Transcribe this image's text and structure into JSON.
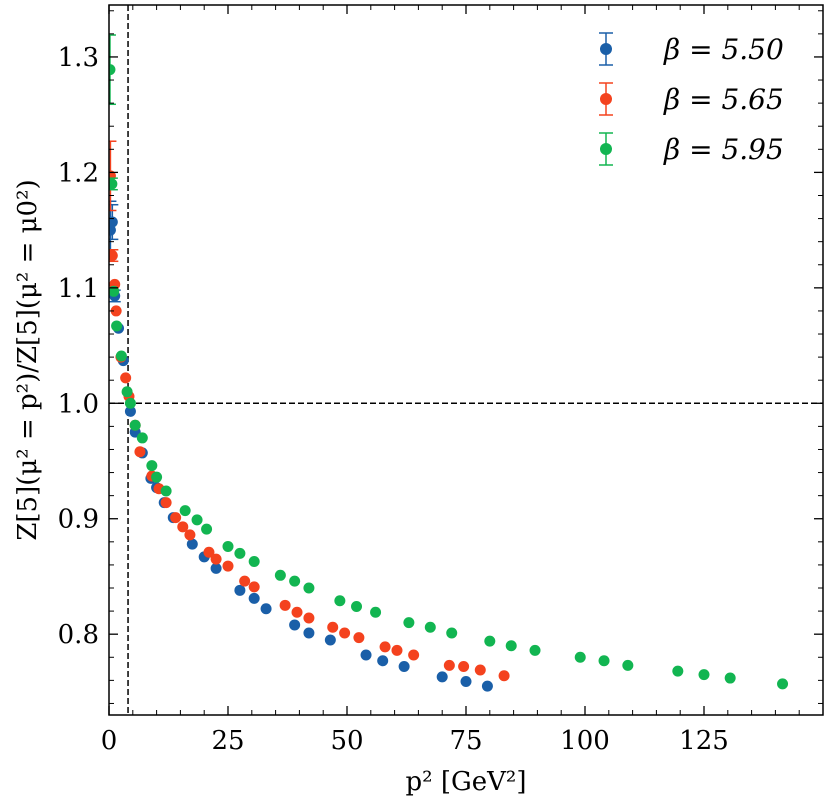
{
  "chart_data": {
    "type": "scatter",
    "title": "",
    "xlabel": "p² [GeV²]",
    "ylabel": "Z[5](μ² = p²)/Z[5](μ² = μ0²)",
    "xlim": [
      0,
      150
    ],
    "ylim": [
      0.73,
      1.345
    ],
    "xticks": [
      0,
      25,
      50,
      75,
      100,
      125
    ],
    "xtick_labels": [
      "0",
      "25",
      "50",
      "75",
      "100",
      "125"
    ],
    "yticks": [
      0.8,
      0.9,
      1.0,
      1.1,
      1.2,
      1.3
    ],
    "ytick_labels": [
      "0.8",
      "0.9",
      "1.0",
      "1.1",
      "1.2",
      "1.3"
    ],
    "reference_lines": {
      "hline_y": 1.0,
      "vline_x": 4
    },
    "legend_position": "top-right",
    "series": [
      {
        "name": "β = 5.50",
        "color": "#1a5fa8",
        "points": [
          [
            0.3,
            1.15,
            0.025
          ],
          [
            0.7,
            1.157,
            0.015
          ],
          [
            1.2,
            1.093,
            0.005
          ],
          [
            2.0,
            1.065,
            0.004
          ],
          [
            3.0,
            1.037,
            0.003
          ],
          [
            4.5,
            0.993,
            0.002
          ],
          [
            5.5,
            0.975,
            0.002
          ],
          [
            7.0,
            0.957,
            0.002
          ],
          [
            8.8,
            0.935,
            0.002
          ],
          [
            10.0,
            0.927,
            0.002
          ],
          [
            11.6,
            0.914,
            0.002
          ],
          [
            13.5,
            0.901,
            0.002
          ],
          [
            17.5,
            0.878,
            0.002
          ],
          [
            20.0,
            0.867,
            0.002
          ],
          [
            22.5,
            0.857,
            0.002
          ],
          [
            27.5,
            0.838,
            0.002
          ],
          [
            30.5,
            0.831,
            0.002
          ],
          [
            33.0,
            0.822,
            0.002
          ],
          [
            39.0,
            0.808,
            0.002
          ],
          [
            42.0,
            0.801,
            0.002
          ],
          [
            46.5,
            0.795,
            0.002
          ],
          [
            54.0,
            0.782,
            0.002
          ],
          [
            57.5,
            0.777,
            0.002
          ],
          [
            62.0,
            0.772,
            0.002
          ],
          [
            70.0,
            0.763,
            0.002
          ],
          [
            75.0,
            0.759,
            0.002
          ],
          [
            79.5,
            0.755,
            0.002
          ]
        ]
      },
      {
        "name": "β = 5.65",
        "color": "#f4421e",
        "points": [
          [
            0.3,
            1.197,
            0.03
          ],
          [
            0.7,
            1.128,
            0.005
          ],
          [
            1.2,
            1.103,
            0.004
          ],
          [
            1.5,
            1.08,
            0.004
          ],
          [
            2.5,
            1.04,
            0.003
          ],
          [
            3.5,
            1.022,
            0.003
          ],
          [
            4.2,
            1.006,
            0.002
          ],
          [
            5.5,
            0.981,
            0.002
          ],
          [
            6.5,
            0.958,
            0.002
          ],
          [
            9.0,
            0.937,
            0.002
          ],
          [
            10.5,
            0.926,
            0.002
          ],
          [
            12.0,
            0.914,
            0.002
          ],
          [
            14.0,
            0.901,
            0.002
          ],
          [
            15.5,
            0.893,
            0.002
          ],
          [
            17.0,
            0.886,
            0.002
          ],
          [
            21.0,
            0.871,
            0.002
          ],
          [
            22.5,
            0.865,
            0.002
          ],
          [
            25.0,
            0.859,
            0.002
          ],
          [
            28.5,
            0.846,
            0.002
          ],
          [
            30.5,
            0.841,
            0.002
          ],
          [
            37.0,
            0.825,
            0.002
          ],
          [
            39.5,
            0.819,
            0.002
          ],
          [
            42.0,
            0.814,
            0.002
          ],
          [
            47.0,
            0.806,
            0.002
          ],
          [
            49.5,
            0.801,
            0.002
          ],
          [
            52.5,
            0.797,
            0.002
          ],
          [
            58.0,
            0.789,
            0.002
          ],
          [
            60.5,
            0.786,
            0.002
          ],
          [
            64.0,
            0.782,
            0.002
          ],
          [
            71.5,
            0.773,
            0.002
          ],
          [
            74.5,
            0.772,
            0.002
          ],
          [
            78.0,
            0.769,
            0.002
          ],
          [
            83.0,
            0.764,
            0.002
          ]
        ]
      },
      {
        "name": "β = 5.95",
        "color": "#12b551",
        "points": [
          [
            0.2,
            1.289,
            0.03
          ],
          [
            0.6,
            1.19,
            0.005
          ],
          [
            1.0,
            1.097,
            0.004
          ],
          [
            1.6,
            1.067,
            0.003
          ],
          [
            2.6,
            1.041,
            0.003
          ],
          [
            3.8,
            1.01,
            0.002
          ],
          [
            4.5,
            1.0,
            0.002
          ],
          [
            5.5,
            0.981,
            0.002
          ],
          [
            7.0,
            0.97,
            0.002
          ],
          [
            9.0,
            0.946,
            0.002
          ],
          [
            10.0,
            0.936,
            0.002
          ],
          [
            12.0,
            0.924,
            0.002
          ],
          [
            16.0,
            0.907,
            0.002
          ],
          [
            18.5,
            0.899,
            0.002
          ],
          [
            20.5,
            0.891,
            0.002
          ],
          [
            25.0,
            0.876,
            0.002
          ],
          [
            27.5,
            0.87,
            0.002
          ],
          [
            30.5,
            0.863,
            0.002
          ],
          [
            36.0,
            0.851,
            0.002
          ],
          [
            39.0,
            0.846,
            0.002
          ],
          [
            42.0,
            0.84,
            0.002
          ],
          [
            48.5,
            0.829,
            0.002
          ],
          [
            52.0,
            0.824,
            0.002
          ],
          [
            56.0,
            0.819,
            0.002
          ],
          [
            63.0,
            0.81,
            0.002
          ],
          [
            67.5,
            0.806,
            0.002
          ],
          [
            72.0,
            0.801,
            0.002
          ],
          [
            80.0,
            0.794,
            0.002
          ],
          [
            84.5,
            0.79,
            0.002
          ],
          [
            89.5,
            0.786,
            0.002
          ],
          [
            99.0,
            0.78,
            0.002
          ],
          [
            104.0,
            0.777,
            0.002
          ],
          [
            109.0,
            0.773,
            0.002
          ],
          [
            119.5,
            0.768,
            0.002
          ],
          [
            125.0,
            0.765,
            0.002
          ],
          [
            130.5,
            0.762,
            0.002
          ],
          [
            141.5,
            0.757,
            0.002
          ]
        ]
      }
    ]
  }
}
